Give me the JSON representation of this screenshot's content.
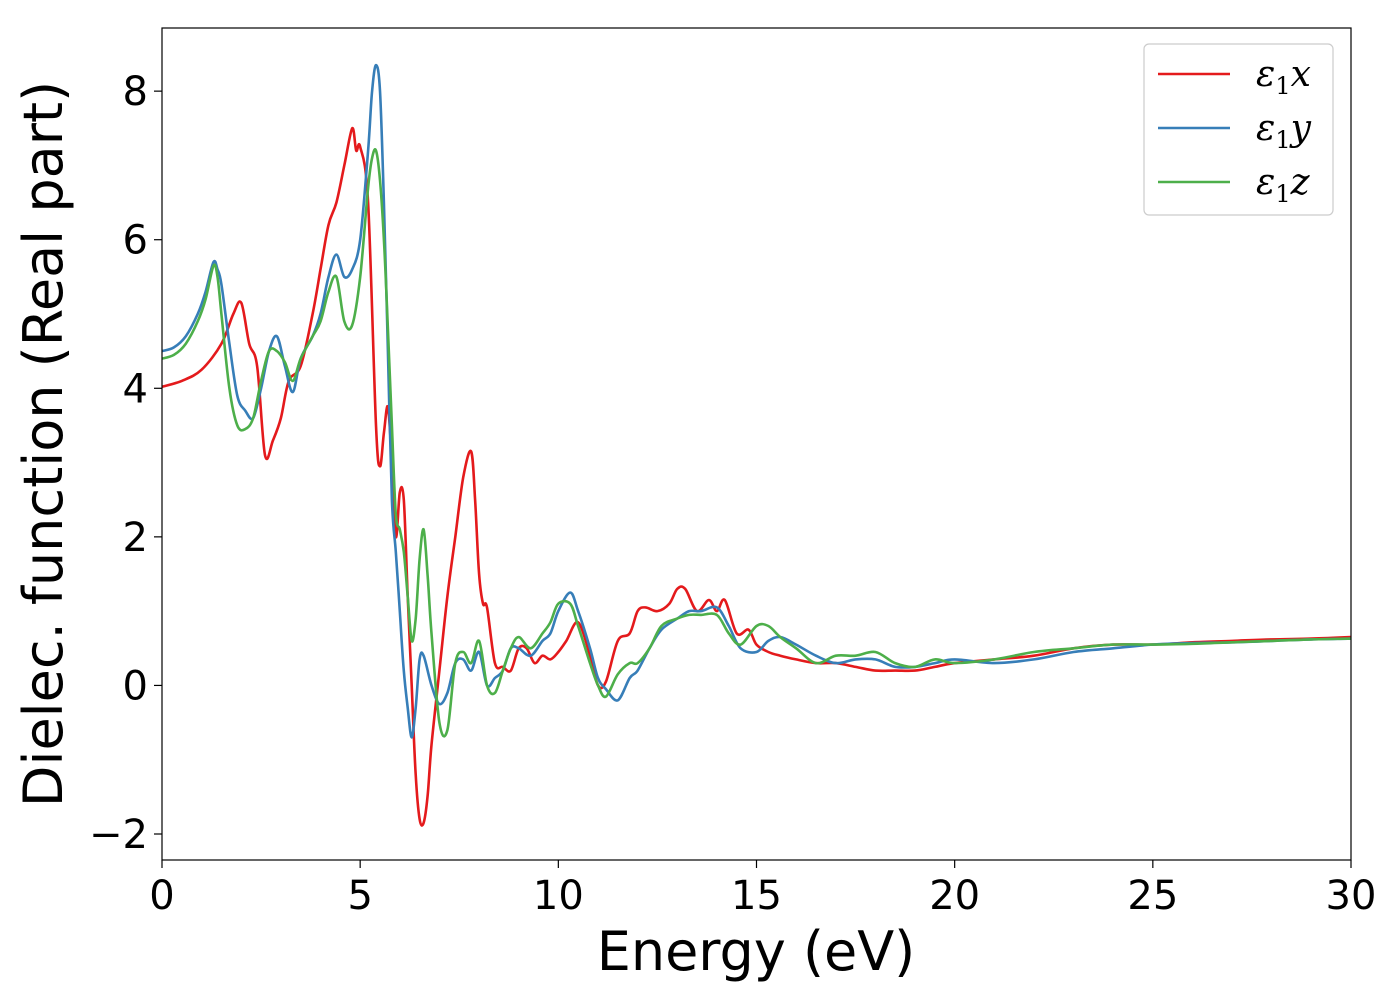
{
  "chart_data": {
    "type": "line",
    "title": "",
    "xlabel": "Energy (eV)",
    "ylabel": "Dielec. function (Real part)",
    "xlim": [
      0,
      30
    ],
    "ylim": [
      -2.35,
      8.85
    ],
    "xticks": [
      0,
      5,
      10,
      15,
      20,
      25,
      30
    ],
    "xtick_labels": [
      "0",
      "5",
      "10",
      "15",
      "20",
      "25",
      "30"
    ],
    "yticks": [
      -2,
      0,
      2,
      4,
      6,
      8
    ],
    "ytick_labels": [
      "−2",
      "0",
      "2",
      "4",
      "6",
      "8"
    ],
    "grid": false,
    "legend_position": "top-right",
    "series": [
      {
        "name": "ε1x",
        "legend_main": "ε",
        "legend_sub": "1",
        "legend_suffix": "x",
        "color": "#e41a1c",
        "x": [
          0,
          0.5,
          1.0,
          1.5,
          1.8,
          2.0,
          2.2,
          2.4,
          2.6,
          2.8,
          3.0,
          3.2,
          3.5,
          3.8,
          4.0,
          4.2,
          4.4,
          4.6,
          4.8,
          4.9,
          5.0,
          5.2,
          5.4,
          5.5,
          5.6,
          5.7,
          5.8,
          5.9,
          6.0,
          6.1,
          6.2,
          6.3,
          6.4,
          6.5,
          6.6,
          6.7,
          6.8,
          7.0,
          7.2,
          7.4,
          7.6,
          7.8,
          7.9,
          8.0,
          8.1,
          8.2,
          8.4,
          8.6,
          8.8,
          9.0,
          9.2,
          9.4,
          9.6,
          9.8,
          10.0,
          10.2,
          10.5,
          10.8,
          11.0,
          11.2,
          11.5,
          11.8,
          12.0,
          12.2,
          12.5,
          12.8,
          13.0,
          13.2,
          13.5,
          13.8,
          14.0,
          14.2,
          14.5,
          14.8,
          15.0,
          15.3,
          15.6,
          16.0,
          16.5,
          17.0,
          17.5,
          18.0,
          18.5,
          19.0,
          19.5,
          20.0,
          21.0,
          22.0,
          23.0,
          24.0,
          25.0,
          26.0,
          27.0,
          28.0,
          29.0,
          30.0
        ],
        "y": [
          4.02,
          4.1,
          4.25,
          4.6,
          5.0,
          5.15,
          4.6,
          4.3,
          3.1,
          3.3,
          3.6,
          4.1,
          4.3,
          5.0,
          5.6,
          6.2,
          6.5,
          7.0,
          7.5,
          7.2,
          7.25,
          6.5,
          3.5,
          2.95,
          3.4,
          3.75,
          3.0,
          2.0,
          2.6,
          2.5,
          1.2,
          0.0,
          -1.2,
          -1.8,
          -1.85,
          -1.5,
          -0.8,
          0.2,
          1.2,
          2.0,
          2.8,
          3.15,
          2.5,
          1.5,
          1.1,
          1.05,
          0.3,
          0.25,
          0.2,
          0.5,
          0.5,
          0.3,
          0.4,
          0.35,
          0.45,
          0.6,
          0.85,
          0.4,
          0.0,
          0.05,
          0.6,
          0.7,
          1.0,
          1.05,
          1.0,
          1.1,
          1.3,
          1.3,
          1.0,
          1.15,
          1.0,
          1.15,
          0.7,
          0.75,
          0.55,
          0.45,
          0.4,
          0.35,
          0.3,
          0.3,
          0.25,
          0.2,
          0.2,
          0.2,
          0.25,
          0.3,
          0.35,
          0.4,
          0.5,
          0.55,
          0.55,
          0.58,
          0.6,
          0.62,
          0.63,
          0.65
        ]
      },
      {
        "name": "ε1y",
        "legend_main": "ε",
        "legend_sub": "1",
        "legend_suffix": "y",
        "color": "#377eb8",
        "x": [
          0,
          0.3,
          0.6,
          0.9,
          1.1,
          1.3,
          1.4,
          1.5,
          1.7,
          1.9,
          2.1,
          2.3,
          2.5,
          2.7,
          2.9,
          3.1,
          3.3,
          3.5,
          3.8,
          4.0,
          4.2,
          4.4,
          4.6,
          4.8,
          5.0,
          5.2,
          5.3,
          5.4,
          5.5,
          5.6,
          5.7,
          5.8,
          5.9,
          6.0,
          6.1,
          6.2,
          6.3,
          6.4,
          6.5,
          6.6,
          6.8,
          7.0,
          7.2,
          7.4,
          7.6,
          7.8,
          8.0,
          8.2,
          8.4,
          8.6,
          8.8,
          9.0,
          9.3,
          9.6,
          9.8,
          10.0,
          10.3,
          10.5,
          10.8,
          11.0,
          11.2,
          11.5,
          11.8,
          12.0,
          12.3,
          12.6,
          13.0,
          13.3,
          13.6,
          14.0,
          14.3,
          14.6,
          15.0,
          15.3,
          15.6,
          16.0,
          16.5,
          17.0,
          17.5,
          18.0,
          18.5,
          19.0,
          19.5,
          20.0,
          21.0,
          22.0,
          23.0,
          24.0,
          25.0,
          26.0,
          27.0,
          28.0,
          29.0,
          30.0
        ],
        "y": [
          4.5,
          4.55,
          4.7,
          5.0,
          5.3,
          5.7,
          5.6,
          5.4,
          4.6,
          3.9,
          3.7,
          3.6,
          4.0,
          4.5,
          4.7,
          4.3,
          3.95,
          4.4,
          4.7,
          5.0,
          5.5,
          5.8,
          5.5,
          5.6,
          6.0,
          7.2,
          8.0,
          8.35,
          8.0,
          6.5,
          4.5,
          2.5,
          1.8,
          1.0,
          0.2,
          -0.3,
          -0.7,
          -0.3,
          0.35,
          0.4,
          0.0,
          -0.25,
          -0.1,
          0.3,
          0.35,
          0.2,
          0.45,
          0.0,
          0.1,
          0.2,
          0.5,
          0.5,
          0.4,
          0.6,
          0.7,
          1.0,
          1.25,
          1.0,
          0.5,
          0.1,
          -0.05,
          -0.2,
          0.1,
          0.2,
          0.5,
          0.75,
          0.9,
          1.0,
          1.0,
          1.05,
          0.8,
          0.5,
          0.45,
          0.6,
          0.65,
          0.55,
          0.4,
          0.3,
          0.35,
          0.35,
          0.25,
          0.25,
          0.3,
          0.35,
          0.3,
          0.35,
          0.45,
          0.5,
          0.55,
          0.57,
          0.58,
          0.6,
          0.62,
          0.63
        ]
      },
      {
        "name": "ε1z",
        "legend_main": "ε",
        "legend_sub": "1",
        "legend_suffix": "z",
        "color": "#4daf4a",
        "x": [
          0,
          0.3,
          0.6,
          0.9,
          1.1,
          1.3,
          1.4,
          1.5,
          1.7,
          1.9,
          2.1,
          2.3,
          2.5,
          2.7,
          2.9,
          3.1,
          3.3,
          3.5,
          3.8,
          4.0,
          4.2,
          4.4,
          4.6,
          4.8,
          5.0,
          5.2,
          5.3,
          5.4,
          5.5,
          5.6,
          5.7,
          5.8,
          5.9,
          6.0,
          6.1,
          6.2,
          6.3,
          6.4,
          6.5,
          6.6,
          6.7,
          6.8,
          7.0,
          7.2,
          7.4,
          7.6,
          7.8,
          8.0,
          8.2,
          8.4,
          8.6,
          8.8,
          9.0,
          9.3,
          9.6,
          9.8,
          10.0,
          10.3,
          10.5,
          10.8,
          11.0,
          11.2,
          11.5,
          11.8,
          12.0,
          12.3,
          12.6,
          13.0,
          13.3,
          13.6,
          14.0,
          14.3,
          14.6,
          15.0,
          15.3,
          15.6,
          16.0,
          16.5,
          17.0,
          17.5,
          18.0,
          18.5,
          19.0,
          19.5,
          20.0,
          21.0,
          22.0,
          23.0,
          24.0,
          25.0,
          26.0,
          27.0,
          28.0,
          29.0,
          30.0
        ],
        "y": [
          4.4,
          4.45,
          4.6,
          4.9,
          5.2,
          5.65,
          5.5,
          5.0,
          4.0,
          3.5,
          3.45,
          3.6,
          4.1,
          4.5,
          4.5,
          4.35,
          4.1,
          4.4,
          4.7,
          4.9,
          5.3,
          5.5,
          4.9,
          4.85,
          5.5,
          6.7,
          7.1,
          7.2,
          6.8,
          6.0,
          4.8,
          3.5,
          2.3,
          2.1,
          1.8,
          1.2,
          0.6,
          0.9,
          1.7,
          2.1,
          1.5,
          0.7,
          -0.5,
          -0.6,
          0.3,
          0.45,
          0.3,
          0.6,
          0.0,
          -0.1,
          0.2,
          0.5,
          0.65,
          0.5,
          0.7,
          0.85,
          1.1,
          1.1,
          0.8,
          0.3,
          0.0,
          -0.15,
          0.15,
          0.3,
          0.3,
          0.5,
          0.8,
          0.9,
          0.95,
          0.95,
          0.95,
          0.7,
          0.55,
          0.8,
          0.8,
          0.65,
          0.5,
          0.3,
          0.4,
          0.4,
          0.45,
          0.3,
          0.25,
          0.35,
          0.3,
          0.35,
          0.45,
          0.5,
          0.55,
          0.55,
          0.56,
          0.58,
          0.6,
          0.62,
          0.63
        ]
      }
    ]
  }
}
